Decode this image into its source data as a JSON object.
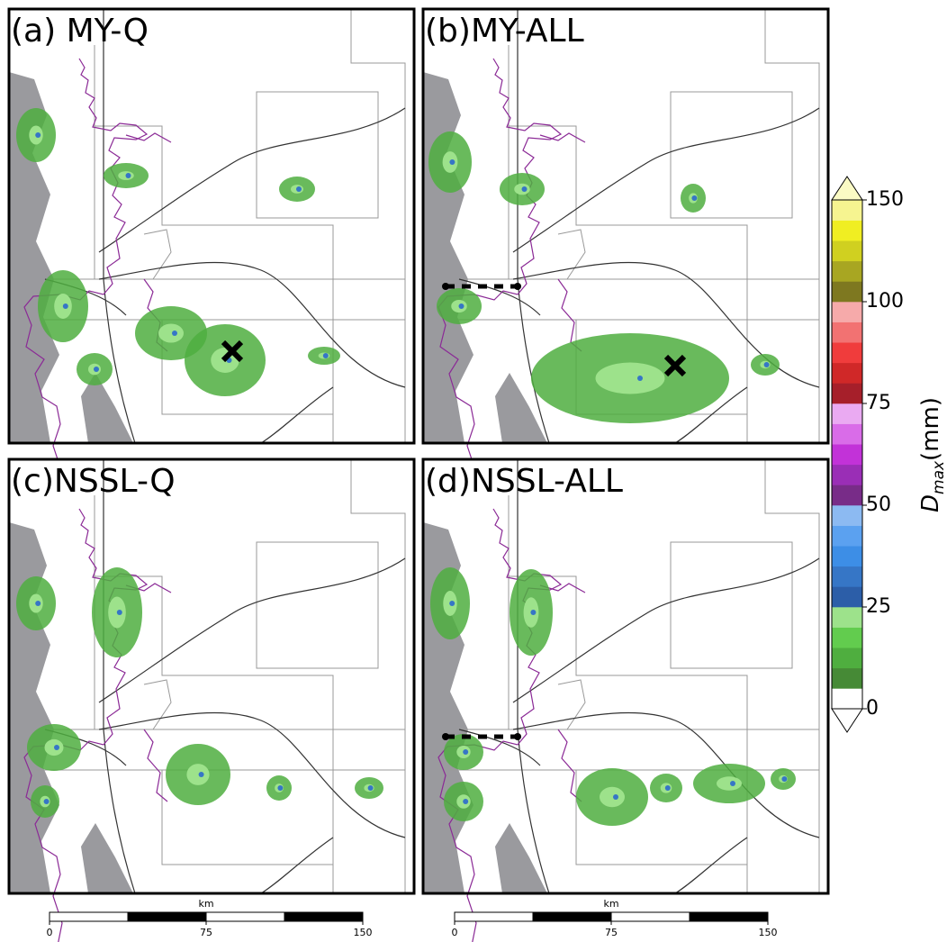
{
  "panels": [
    {
      "title": "(a) MY-Q"
    },
    {
      "title": "(b)MY-ALL"
    },
    {
      "title": "(c)NSSL-Q"
    },
    {
      "title": "(d)NSSL-ALL"
    }
  ],
  "colorbar": {
    "label": {
      "main": "D",
      "sub": "max",
      "unit": "(mm)"
    },
    "levels": [
      0,
      5,
      10,
      15,
      20,
      25,
      30,
      35,
      40,
      45,
      50,
      55,
      60,
      65,
      70,
      75,
      80,
      85,
      90,
      95,
      100,
      110,
      120,
      130,
      140,
      150
    ],
    "colors": [
      "#ffffff",
      "#468a36",
      "#4fae3f",
      "#62cc4e",
      "#9de28b",
      "#2c5ea8",
      "#3676c6",
      "#3d8ee6",
      "#5ba1f0",
      "#8cbaf2",
      "#782c88",
      "#9a2eb6",
      "#c232d8",
      "#d96ce8",
      "#eaaaf2",
      "#a61f2a",
      "#d02828",
      "#f03c3c",
      "#f27272",
      "#f6aaaa",
      "#7e7820",
      "#a8a622",
      "#d0d020",
      "#f0ee22",
      "#f6f490"
    ],
    "over_color": "#fafac4",
    "under_color": "#ffffff",
    "ticks": [
      0,
      25,
      50,
      75,
      100,
      150
    ]
  },
  "scalebars": [
    {
      "unit": "km",
      "xlim": [
        0,
        150
      ],
      "ticks": [
        0,
        75,
        150
      ],
      "divisions": 4
    },
    {
      "unit": "km",
      "xlim": [
        0,
        150
      ],
      "ticks": [
        0,
        75,
        150
      ],
      "divisions": 4
    }
  ]
}
